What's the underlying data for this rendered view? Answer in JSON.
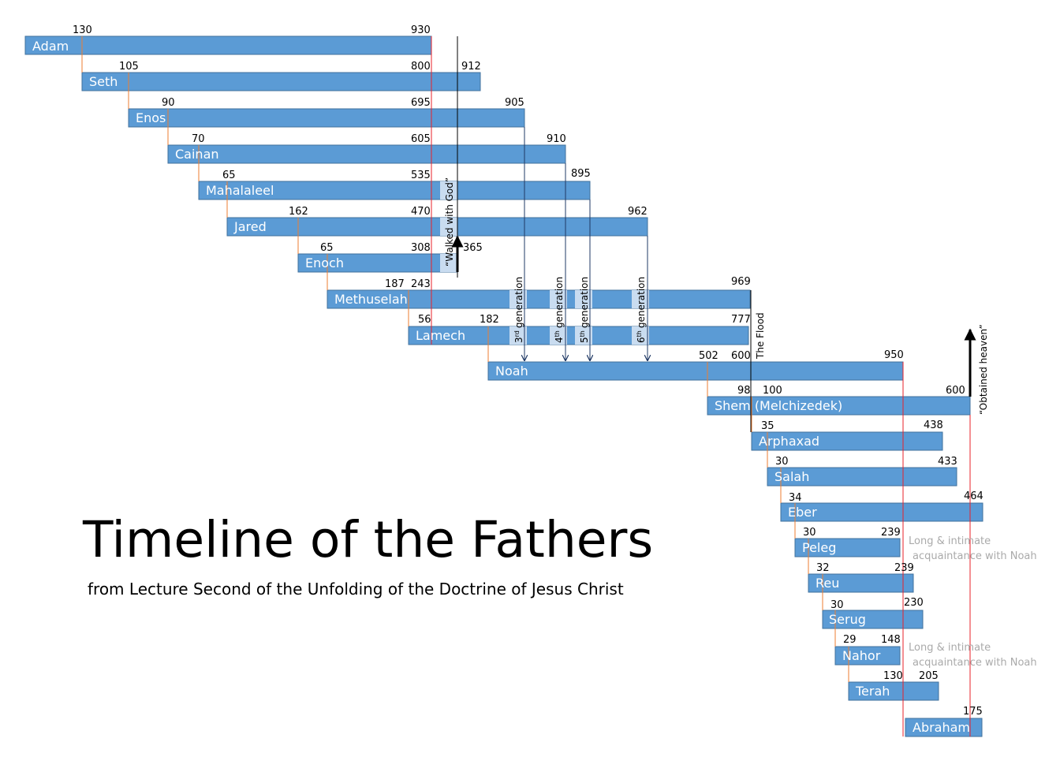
{
  "title": "Timeline of the Fathers",
  "subtitle": "from Lecture Second of the Unfolding of the Doctrine of Jesus Christ",
  "colors": {
    "bar_fill": "#5b9bd5",
    "bar_edge": "#41719c",
    "birth_line": "#ed7d31",
    "red_line": "#e8202a",
    "walk_box": "#c9dcf0",
    "note_text": "#aaaaaa"
  },
  "fathers": [
    {
      "name": "Adam",
      "numbers": [
        "130",
        "930"
      ]
    },
    {
      "name": "Seth",
      "numbers": [
        "105",
        "800",
        "912"
      ]
    },
    {
      "name": "Enos",
      "numbers": [
        "90",
        "695",
        "905"
      ]
    },
    {
      "name": "Cainan",
      "numbers": [
        "70",
        "605",
        "910"
      ]
    },
    {
      "name": "Mahalaleel",
      "numbers": [
        "65",
        "535",
        "895"
      ]
    },
    {
      "name": "Jared",
      "numbers": [
        "162",
        "470",
        "962"
      ]
    },
    {
      "name": "Enoch",
      "numbers": [
        "65",
        "308",
        "365"
      ]
    },
    {
      "name": "Methuselah",
      "numbers": [
        "187",
        "243",
        "969"
      ]
    },
    {
      "name": "Lamech",
      "numbers": [
        "56",
        "182",
        "777"
      ]
    },
    {
      "name": "Noah",
      "numbers": [
        "502",
        "600",
        "950"
      ]
    },
    {
      "name": "Shem (Melchizedek)",
      "numbers": [
        "98",
        "100",
        "600"
      ]
    },
    {
      "name": "Arphaxad",
      "numbers": [
        "35",
        "438"
      ]
    },
    {
      "name": "Salah",
      "numbers": [
        "30",
        "433"
      ]
    },
    {
      "name": "Eber",
      "numbers": [
        "34",
        "464"
      ]
    },
    {
      "name": "Peleg",
      "numbers": [
        "30",
        "239"
      ]
    },
    {
      "name": "Reu",
      "numbers": [
        "32",
        "239"
      ]
    },
    {
      "name": "Serug",
      "numbers": [
        "30",
        "230"
      ]
    },
    {
      "name": "Nahor",
      "numbers": [
        "29",
        "148"
      ]
    },
    {
      "name": "Terah",
      "numbers": [
        "130",
        "205"
      ]
    },
    {
      "name": "Abraham",
      "numbers": [
        "175"
      ]
    }
  ],
  "annotations": {
    "walked_with_god": "“Walked with God”",
    "obtained_heaven": "“Obtained heaven”",
    "the_flood": "The Flood",
    "generations": [
      {
        "ordinal": "3",
        "suffix": "rd",
        "word": "generation"
      },
      {
        "ordinal": "4",
        "suffix": "th",
        "word": "generation"
      },
      {
        "ordinal": "5",
        "suffix": "th",
        "word": "generation"
      },
      {
        "ordinal": "6",
        "suffix": "th",
        "word": "generation"
      }
    ],
    "notes": [
      {
        "line1": "Long & intimate",
        "line2": "acquaintance with Noah"
      },
      {
        "line1": "Long & intimate",
        "line2": "acquaintance with Noah"
      }
    ]
  }
}
